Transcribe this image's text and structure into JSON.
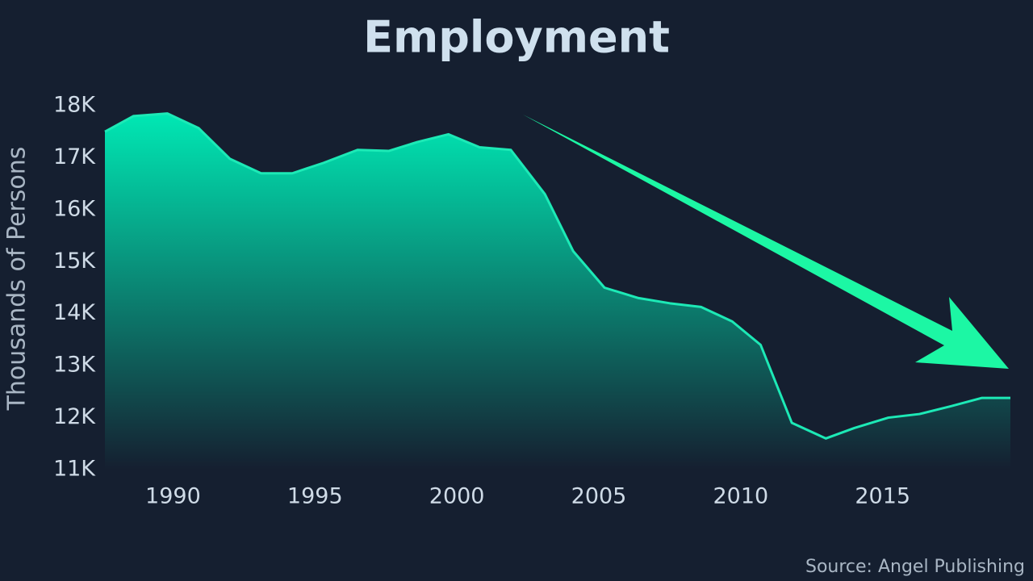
{
  "chart_data": {
    "type": "area",
    "title": "Employment",
    "y_label": "Thousands of Persons",
    "source": "Source: Angel Publishing",
    "x": [
      1987.6,
      1988.6,
      1989.8,
      1990.9,
      1992.0,
      1993.1,
      1994.2,
      1995.3,
      1996.5,
      1997.6,
      1998.6,
      1999.7,
      2000.8,
      2001.9,
      2003.1,
      2004.1,
      2005.2,
      2006.4,
      2007.5,
      2008.6,
      2009.7,
      2010.7,
      2011.8,
      2013.0,
      2014.0,
      2015.2,
      2016.3,
      2017.4,
      2018.5,
      2019.5
    ],
    "series": [
      {
        "name": "Employment",
        "color": "#1de9b6",
        "values": [
          17500,
          17800,
          17850,
          17570,
          16980,
          16700,
          16700,
          16900,
          17150,
          17130,
          17300,
          17450,
          17200,
          17150,
          16300,
          15200,
          14500,
          14300,
          14200,
          14130,
          13850,
          13400,
          11900,
          11600,
          11800,
          12000,
          12070,
          12220,
          12380,
          12380
        ]
      }
    ],
    "xlim": [
      1987.6,
      2019.5
    ],
    "xticks": [
      1990,
      1995,
      2000,
      2005,
      2010,
      2015
    ],
    "ylim": [
      11000,
      18000
    ],
    "yticks": [
      {
        "value": 11000,
        "label": "11K"
      },
      {
        "value": 12000,
        "label": "12K"
      },
      {
        "value": 13000,
        "label": "13K"
      },
      {
        "value": 14000,
        "label": "14K"
      },
      {
        "value": 15000,
        "label": "15K"
      },
      {
        "value": 16000,
        "label": "16K"
      },
      {
        "value": 17000,
        "label": "17K"
      },
      {
        "value": 18000,
        "label": "18K"
      }
    ],
    "grid": false
  }
}
